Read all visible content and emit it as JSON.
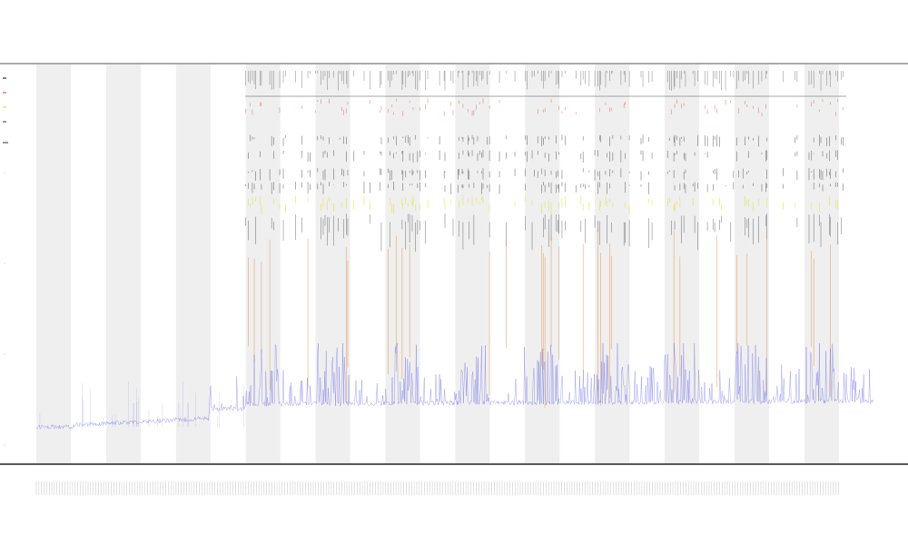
{
  "chart_data": {
    "type": "line",
    "title": "",
    "subtitle_lines": [
      "",
      ""
    ],
    "xlabel": "",
    "ylabel": "",
    "legend": {
      "placement": "top-left",
      "entries": [
        {
          "label": "",
          "color": "#000000"
        },
        {
          "label": "",
          "color": "#d13b1f"
        },
        {
          "label": "",
          "color": "#d6d61a"
        },
        {
          "label": "",
          "color": "#333333"
        }
      ]
    },
    "bands": {
      "count": 12,
      "color": "#efefef"
    },
    "series": [
      {
        "role": "baseline-trace",
        "color": "#5a5ae6"
      },
      {
        "role": "event-marks",
        "color": "#333333"
      },
      {
        "role": "red-marks",
        "color": "#e04a3a"
      },
      {
        "role": "yellow-marks",
        "color": "#e2e232"
      },
      {
        "role": "orange-lines",
        "color": "#e07a2a"
      }
    ],
    "grid": false
  }
}
